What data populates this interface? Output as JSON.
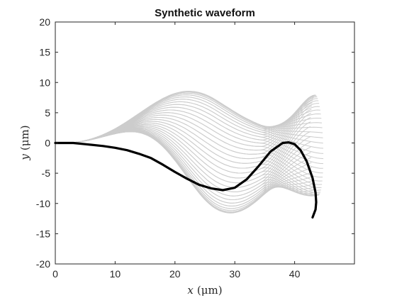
{
  "chart_data": {
    "type": "line",
    "title": "Synthetic waveform",
    "xlabel": "x (μm)",
    "ylabel": "y (μm)",
    "xlabel_parts": {
      "var": "x",
      "unit": "(μm)"
    },
    "ylabel_parts": {
      "var": "y",
      "unit": "(μm)"
    },
    "xlim": [
      0,
      50
    ],
    "ylim": [
      -20,
      20
    ],
    "xticks": [
      0,
      10,
      20,
      30,
      40
    ],
    "yticks": [
      -20,
      -15,
      -10,
      -5,
      0,
      5,
      10,
      15,
      20
    ],
    "grid": false,
    "legend": "none",
    "background_traces": {
      "color": "#cccccc",
      "count": 60,
      "description_free": true
    },
    "highlight_series": {
      "color": "#000000",
      "x": [
        0,
        3,
        5,
        8,
        10,
        12,
        14,
        16,
        18,
        20,
        22,
        24,
        26,
        28,
        30,
        32,
        34,
        36,
        38,
        39,
        40,
        41,
        42,
        43,
        43.5,
        43.6,
        43.5,
        43.0
      ],
      "y": [
        0,
        0,
        -0.2,
        -0.5,
        -0.8,
        -1.2,
        -1.8,
        -2.5,
        -3.6,
        -4.8,
        -5.9,
        -6.9,
        -7.5,
        -7.8,
        -7.4,
        -6.0,
        -3.8,
        -1.4,
        0,
        0.1,
        -0.2,
        -1.2,
        -3.0,
        -5.8,
        -8.2,
        -9.8,
        -11.0,
        -12.3
      ]
    }
  }
}
